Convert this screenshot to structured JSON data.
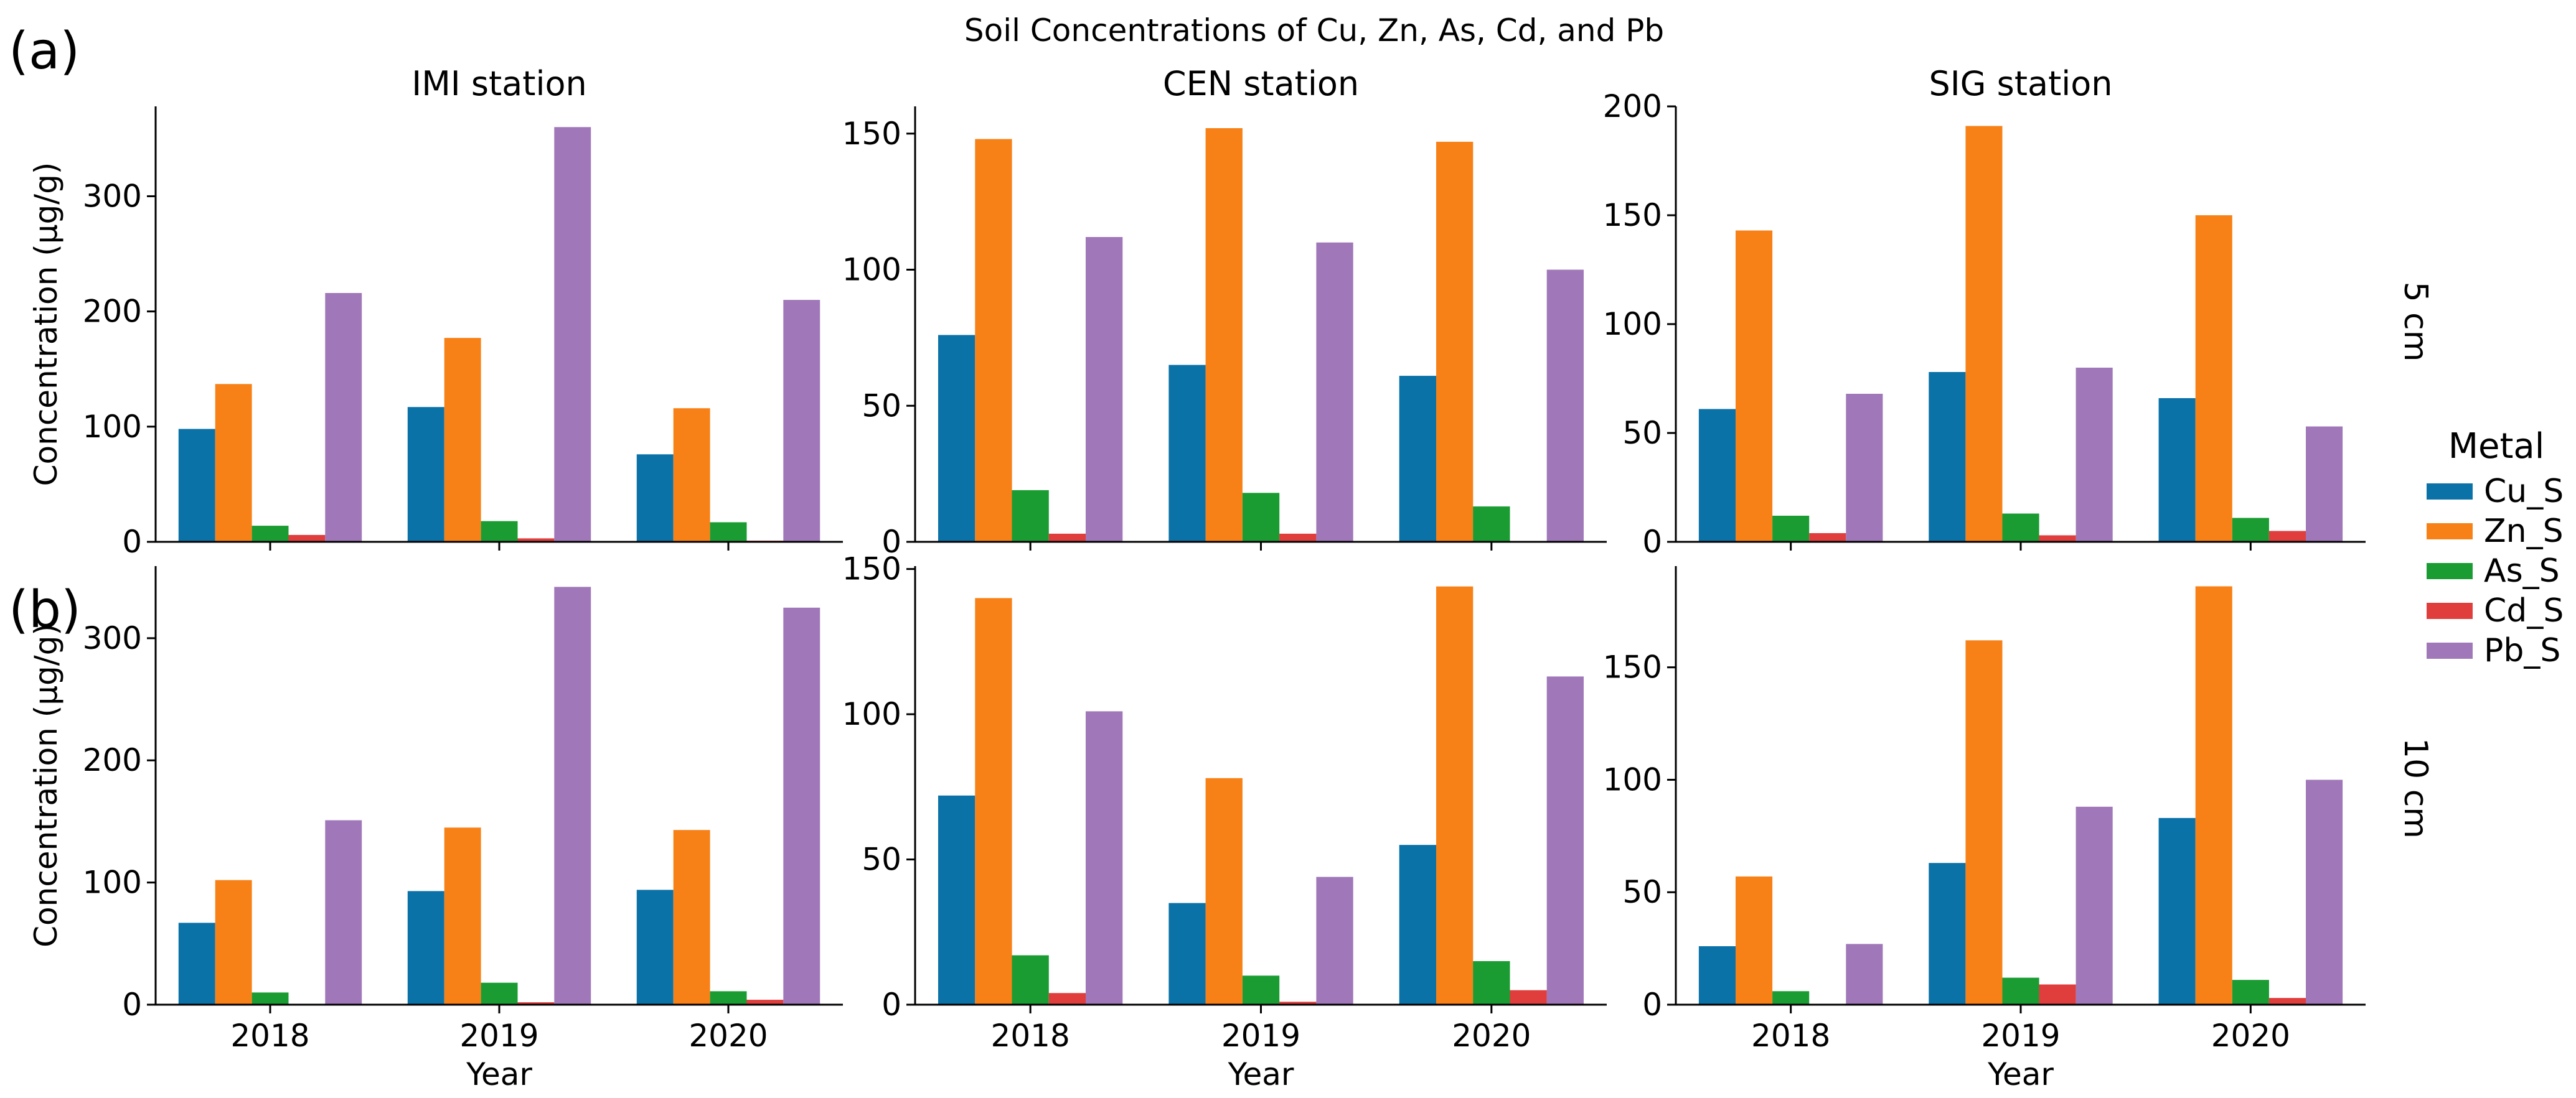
{
  "figure": {
    "title": "Soil Concentrations of Cu, Zn, As, Cd, and Pb",
    "panel_labels": [
      "(a)",
      "(b)"
    ],
    "row_labels": [
      "5 cm",
      "10 cm"
    ],
    "legend": {
      "title": "Metal",
      "entries": [
        "Cu_S",
        "Zn_S",
        "As_S",
        "Cd_S",
        "Pb_S"
      ],
      "placement": "center-right"
    }
  },
  "colors": {
    "Cu_S": "#0b72a8",
    "Zn_S": "#f88117",
    "As_S": "#1a9c33",
    "Cd_S": "#e03d3d",
    "Pb_S": "#a077b8",
    "axis": "#000000",
    "background": "#ffffff"
  },
  "chart_data": [
    {
      "type": "bar",
      "title": "IMI station",
      "ylabel": "Concentration (µg/g)",
      "categories": [
        "2018",
        "2019",
        "2020"
      ],
      "ylim": [
        0,
        378
      ],
      "yticks": [
        0,
        100,
        200,
        300
      ],
      "grid": false,
      "series": [
        {
          "name": "Cu_S",
          "values": [
            98,
            117,
            76
          ]
        },
        {
          "name": "Zn_S",
          "values": [
            137,
            177,
            116
          ]
        },
        {
          "name": "As_S",
          "values": [
            14,
            18,
            17
          ]
        },
        {
          "name": "Cd_S",
          "values": [
            6,
            3,
            1
          ]
        },
        {
          "name": "Pb_S",
          "values": [
            216,
            360,
            210
          ]
        }
      ]
    },
    {
      "type": "bar",
      "title": "CEN station",
      "categories": [
        "2018",
        "2019",
        "2020"
      ],
      "ylim": [
        0,
        160
      ],
      "yticks": [
        0,
        50,
        100,
        150
      ],
      "grid": false,
      "series": [
        {
          "name": "Cu_S",
          "values": [
            76,
            65,
            61
          ]
        },
        {
          "name": "Zn_S",
          "values": [
            148,
            152,
            147
          ]
        },
        {
          "name": "As_S",
          "values": [
            19,
            18,
            13
          ]
        },
        {
          "name": "Cd_S",
          "values": [
            3,
            3,
            0
          ]
        },
        {
          "name": "Pb_S",
          "values": [
            112,
            110,
            100
          ]
        }
      ]
    },
    {
      "type": "bar",
      "title": "SIG station",
      "categories": [
        "2018",
        "2019",
        "2020"
      ],
      "ylim": [
        0,
        200
      ],
      "yticks": [
        0,
        50,
        100,
        150,
        200
      ],
      "grid": false,
      "series": [
        {
          "name": "Cu_S",
          "values": [
            61,
            78,
            66
          ]
        },
        {
          "name": "Zn_S",
          "values": [
            143,
            191,
            150
          ]
        },
        {
          "name": "As_S",
          "values": [
            12,
            13,
            11
          ]
        },
        {
          "name": "Cd_S",
          "values": [
            4,
            3,
            5
          ]
        },
        {
          "name": "Pb_S",
          "values": [
            68,
            80,
            53
          ]
        }
      ]
    },
    {
      "type": "bar",
      "xlabel": "Year",
      "ylabel": "Concentration (µg/g)",
      "categories": [
        "2018",
        "2019",
        "2020"
      ],
      "ylim": [
        0,
        359
      ],
      "yticks": [
        0,
        100,
        200,
        300
      ],
      "grid": false,
      "series": [
        {
          "name": "Cu_S",
          "values": [
            67,
            93,
            94
          ]
        },
        {
          "name": "Zn_S",
          "values": [
            102,
            145,
            143
          ]
        },
        {
          "name": "As_S",
          "values": [
            10,
            18,
            11
          ]
        },
        {
          "name": "Cd_S",
          "values": [
            0,
            2,
            4
          ]
        },
        {
          "name": "Pb_S",
          "values": [
            151,
            342,
            325
          ]
        }
      ]
    },
    {
      "type": "bar",
      "xlabel": "Year",
      "categories": [
        "2018",
        "2019",
        "2020"
      ],
      "ylim": [
        0,
        151
      ],
      "yticks": [
        0,
        50,
        100,
        150
      ],
      "grid": false,
      "series": [
        {
          "name": "Cu_S",
          "values": [
            72,
            35,
            55
          ]
        },
        {
          "name": "Zn_S",
          "values": [
            140,
            78,
            144
          ]
        },
        {
          "name": "As_S",
          "values": [
            17,
            10,
            15
          ]
        },
        {
          "name": "Cd_S",
          "values": [
            4,
            1,
            5
          ]
        },
        {
          "name": "Pb_S",
          "values": [
            101,
            44,
            113
          ]
        }
      ]
    },
    {
      "type": "bar",
      "xlabel": "Year",
      "categories": [
        "2018",
        "2019",
        "2020"
      ],
      "ylim": [
        0,
        195
      ],
      "yticks": [
        0,
        50,
        100,
        150
      ],
      "grid": false,
      "series": [
        {
          "name": "Cu_S",
          "values": [
            26,
            63,
            83
          ]
        },
        {
          "name": "Zn_S",
          "values": [
            57,
            162,
            186
          ]
        },
        {
          "name": "As_S",
          "values": [
            6,
            12,
            11
          ]
        },
        {
          "name": "Cd_S",
          "values": [
            0,
            9,
            3
          ]
        },
        {
          "name": "Pb_S",
          "values": [
            27,
            88,
            100
          ]
        }
      ]
    }
  ]
}
